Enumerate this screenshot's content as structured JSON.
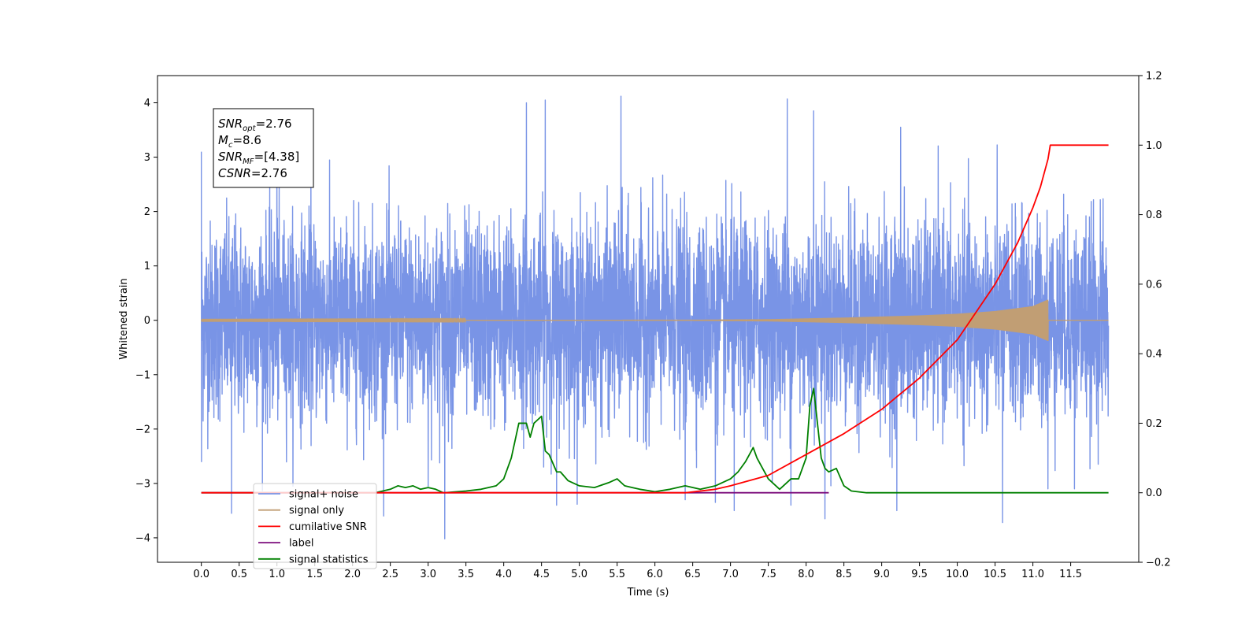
{
  "chart_data": {
    "type": "line",
    "xlabel": "Time (s)",
    "ylabel": "Whitened strain",
    "xlim": [
      -0.58,
      12.4
    ],
    "ylim": [
      -4.45,
      4.5
    ],
    "ylim_right": [
      -0.2,
      1.2
    ],
    "x_ticks": [
      0.0,
      0.5,
      1.0,
      1.5,
      2.0,
      2.5,
      3.0,
      3.5,
      4.0,
      4.5,
      5.0,
      5.5,
      6.0,
      6.5,
      7.0,
      7.5,
      8.0,
      8.5,
      9.0,
      9.5,
      10.0,
      10.5,
      11.0,
      11.5
    ],
    "x_tick_labels": [
      "0.0",
      "0.5",
      "1.0",
      "1.5",
      "2.0",
      "2.5",
      "3.0",
      "3.5",
      "4.0",
      "4.5",
      "5.0",
      "5.5",
      "6.0",
      "6.5",
      "7.0",
      "7.5",
      "8.0",
      "8.5",
      "9.0",
      "9.5",
      "10.0",
      "10.5",
      "11.0",
      "11.5"
    ],
    "y_ticks": [
      -4,
      -3,
      -2,
      -1,
      0,
      1,
      2,
      3,
      4
    ],
    "y_tick_labels": [
      "−4",
      "−3",
      "−2",
      "−1",
      "0",
      "1",
      "2",
      "3",
      "4"
    ],
    "y_ticks_right": [
      -0.2,
      0.0,
      0.2,
      0.4,
      0.6,
      0.8,
      1.0,
      1.2
    ],
    "y_tick_labels_right": [
      "−0.2",
      "0.0",
      "0.2",
      "0.4",
      "0.6",
      "0.8",
      "1.0",
      "1.2"
    ],
    "grid": false,
    "legend_placement": "lower-left",
    "annotation": {
      "lines": [
        {
          "pre": "SNR",
          "sub": "opt",
          "post": "=2.76"
        },
        {
          "pre": "M",
          "sub": "c",
          "post": "=8.6"
        },
        {
          "pre": "SNR",
          "sub": "MF",
          "post": "=[4.38]"
        },
        {
          "pre": "CSNR",
          "sub": "",
          "post": "=2.76"
        }
      ]
    },
    "series": [
      {
        "name": "signal+ noise",
        "axis": "left",
        "color": "#7994e6",
        "style": "dense noise",
        "x_range": [
          0.0,
          12.0
        ],
        "typical_band": [
          -1.6,
          1.6
        ],
        "spikes": [
          {
            "x": 0.0,
            "y": 3.1
          },
          {
            "x": 0.0,
            "y": -2.6
          },
          {
            "x": 0.4,
            "y": -3.55
          },
          {
            "x": 1.0,
            "y": 3.0
          },
          {
            "x": 1.45,
            "y": 3.2
          },
          {
            "x": 3.0,
            "y": -3.05
          },
          {
            "x": 3.22,
            "y": -4.02
          },
          {
            "x": 4.3,
            "y": 4.0
          },
          {
            "x": 4.55,
            "y": 4.05
          },
          {
            "x": 4.7,
            "y": -3.4
          },
          {
            "x": 5.55,
            "y": 4.12
          },
          {
            "x": 6.4,
            "y": -3.3
          },
          {
            "x": 6.8,
            "y": -3.35
          },
          {
            "x": 7.05,
            "y": -3.5
          },
          {
            "x": 7.75,
            "y": 4.07
          },
          {
            "x": 7.8,
            "y": -3.4
          },
          {
            "x": 8.1,
            "y": 3.85
          },
          {
            "x": 8.25,
            "y": -3.65
          },
          {
            "x": 9.2,
            "y": -3.5
          },
          {
            "x": 9.25,
            "y": 3.55
          },
          {
            "x": 10.6,
            "y": -3.72
          },
          {
            "x": 11.2,
            "y": -3.1
          },
          {
            "x": 11.55,
            "y": -3.1
          }
        ]
      },
      {
        "name": "signal only",
        "axis": "left",
        "color": "#c19e74",
        "style": "chirp",
        "x_range": [
          0.0,
          12.0
        ],
        "chirp_end": 11.2,
        "envelope": [
          [
            0.0,
            0.005
          ],
          [
            6.5,
            0.01
          ],
          [
            7.5,
            0.02
          ],
          [
            8.5,
            0.05
          ],
          [
            9.5,
            0.09
          ],
          [
            10.0,
            0.12
          ],
          [
            10.5,
            0.17
          ],
          [
            11.0,
            0.26
          ],
          [
            11.2,
            0.38
          ]
        ]
      },
      {
        "name": "cumilative SNR",
        "axis": "right",
        "color": "#ff0000",
        "x": [
          0.0,
          6.4,
          6.8,
          7.0,
          7.5,
          8.0,
          8.5,
          9.0,
          9.5,
          10.0,
          10.5,
          10.8,
          11.0,
          11.1,
          11.2,
          11.23,
          12.0
        ],
        "values": [
          0.0,
          0.0,
          0.01,
          0.02,
          0.05,
          0.11,
          0.17,
          0.24,
          0.33,
          0.44,
          0.6,
          0.72,
          0.82,
          0.88,
          0.96,
          1.0,
          1.0
        ]
      },
      {
        "name": "label",
        "axis": "right",
        "color": "#7b0b7b",
        "x": [
          0.0,
          8.3
        ],
        "values": [
          0.0,
          0.0
        ]
      },
      {
        "name": "signal statistics",
        "axis": "right",
        "color": "#008000",
        "x": [
          0.0,
          2.3,
          2.5,
          2.6,
          2.7,
          2.8,
          2.9,
          3.0,
          3.1,
          3.2,
          3.5,
          3.7,
          3.9,
          4.0,
          4.1,
          4.2,
          4.3,
          4.35,
          4.4,
          4.45,
          4.5,
          4.55,
          4.6,
          4.7,
          4.75,
          4.85,
          5.0,
          5.2,
          5.4,
          5.5,
          5.6,
          5.7,
          5.8,
          6.0,
          6.2,
          6.4,
          6.6,
          6.7,
          6.8,
          7.0,
          7.1,
          7.2,
          7.25,
          7.3,
          7.35,
          7.4,
          7.5,
          7.65,
          7.8,
          7.9,
          8.0,
          8.05,
          8.1,
          8.15,
          8.2,
          8.25,
          8.3,
          8.4,
          8.5,
          8.6,
          8.8,
          9.0,
          12.0
        ],
        "values": [
          0.0,
          0.0,
          0.01,
          0.02,
          0.015,
          0.02,
          0.01,
          0.015,
          0.01,
          0.0,
          0.005,
          0.01,
          0.02,
          0.04,
          0.1,
          0.2,
          0.2,
          0.16,
          0.2,
          0.21,
          0.22,
          0.12,
          0.11,
          0.06,
          0.06,
          0.035,
          0.02,
          0.015,
          0.03,
          0.04,
          0.02,
          0.015,
          0.01,
          0.003,
          0.01,
          0.02,
          0.01,
          0.015,
          0.02,
          0.04,
          0.06,
          0.09,
          0.11,
          0.13,
          0.1,
          0.08,
          0.04,
          0.01,
          0.04,
          0.04,
          0.1,
          0.25,
          0.3,
          0.2,
          0.1,
          0.07,
          0.06,
          0.07,
          0.02,
          0.005,
          0.0,
          0.0,
          0.0
        ]
      }
    ]
  }
}
